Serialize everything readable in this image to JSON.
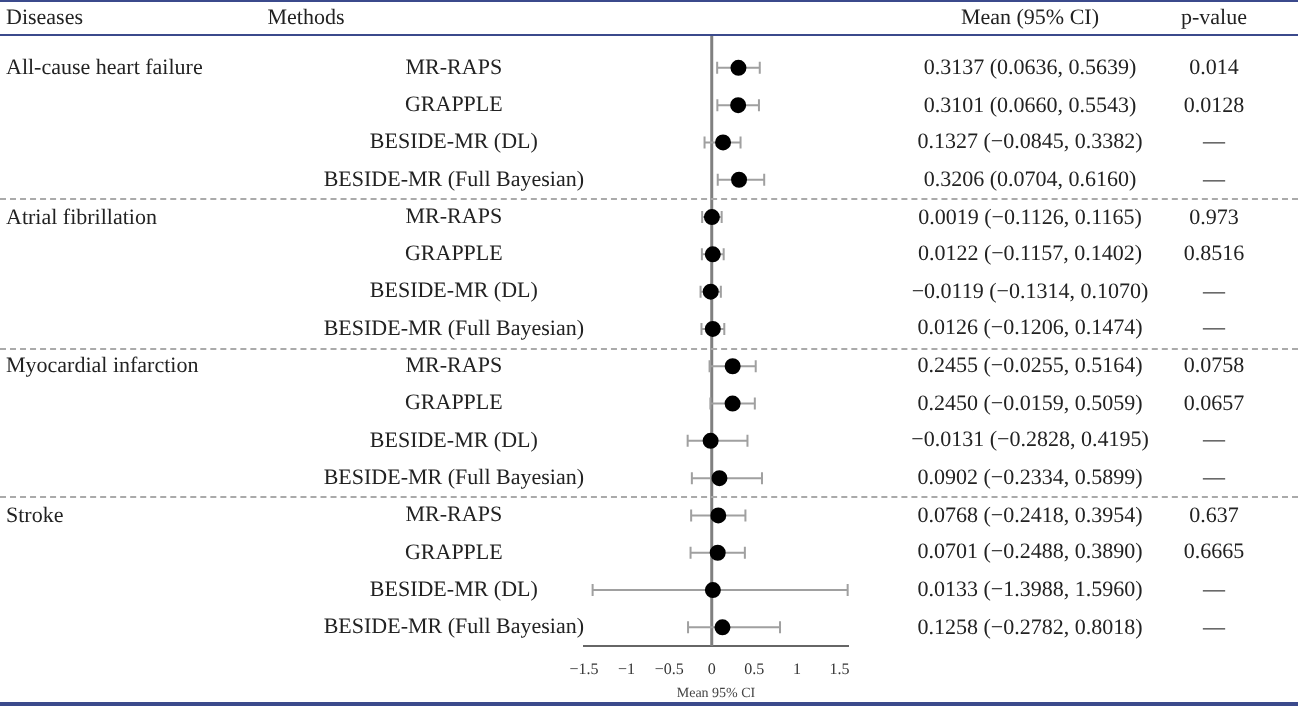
{
  "chart_data": {
    "type": "scatter",
    "orientation": "horizontal",
    "xlabel": "Mean 95% CI",
    "categories": [
      "MR-RAPS",
      "GRAPPLE",
      "BESIDE-MR (DL)",
      "BESIDE-MR (Full Bayesian)",
      "MR-RAPS",
      "GRAPPLE",
      "BESIDE-MR (DL)",
      "BESIDE-MR (Full Bayesian)",
      "MR-RAPS",
      "GRAPPLE",
      "BESIDE-MR (DL)",
      "BESIDE-MR (Full Bayesian)",
      "MR-RAPS",
      "GRAPPLE",
      "BESIDE-MR (DL)",
      "BESIDE-MR (Full Bayesian)"
    ],
    "series": [
      {
        "color": "#000000",
        "values": [
          0.3137,
          0.3101,
          0.1327,
          0.3206,
          0.0019,
          0.0122,
          -0.0119,
          0.0126,
          0.2455,
          0.245,
          -0.0131,
          0.0902,
          0.0768,
          0.0701,
          0.0133,
          0.1258
        ],
        "errors": [
          [
            0.0636,
            0.5639
          ],
          [
            0.066,
            0.5543
          ],
          [
            -0.0845,
            0.3382
          ],
          [
            0.0704,
            0.616
          ],
          [
            -0.1126,
            0.1165
          ],
          [
            -0.1157,
            0.1402
          ],
          [
            -0.1314,
            0.107
          ],
          [
            -0.1206,
            0.1474
          ],
          [
            -0.0255,
            0.5164
          ],
          [
            -0.0159,
            0.5059
          ],
          [
            -0.2828,
            0.4195
          ],
          [
            -0.2334,
            0.5899
          ],
          [
            -0.2418,
            0.3954
          ],
          [
            -0.2488,
            0.389
          ],
          [
            -1.3988,
            1.596
          ],
          [
            -0.2782,
            0.8018
          ]
        ],
        "value_labels": [
          "0.3137 (0.0636, 0.5639)",
          "0.3101 (0.0660, 0.5543)",
          "0.1327 (−0.0845, 0.3382)",
          "0.3206 (0.0704, 0.6160)",
          "0.0019 (−0.1126, 0.1165)",
          "0.0122 (−0.1157, 0.1402)",
          "−0.0119 (−0.1314, 0.1070)",
          "0.0126 (−0.1206, 0.1474)",
          "0.2455 (−0.0255, 0.5164)",
          "0.2450 (−0.0159, 0.5059)",
          "−0.0131 (−0.2828, 0.4195)",
          "0.0902 (−0.2334, 0.5899)",
          "0.0768 (−0.2418, 0.3954)",
          "0.0701 (−0.2488, 0.3890)",
          "0.0133 (−1.3988, 1.5960)",
          "0.1258 (−0.2782, 0.8018)"
        ]
      }
    ],
    "xlim": [
      -1.5,
      1.6
    ],
    "xticks": [
      {
        "value": -1.5,
        "label": "−1.5"
      },
      {
        "value": -1,
        "label": "−1"
      },
      {
        "value": -0.5,
        "label": "−0.5"
      },
      {
        "value": 0,
        "label": "0"
      },
      {
        "value": 0.5,
        "label": "0.5"
      },
      {
        "value": 1,
        "label": "1"
      },
      {
        "value": 1.5,
        "label": "1.5"
      }
    ],
    "ref_lines": [
      {
        "axis": "x",
        "value": 0,
        "color": "#808080"
      }
    ],
    "marker": "circle",
    "grid": false,
    "legend": false,
    "annotations": [
      "Diseases",
      "Methods",
      "Mean (95% CI)",
      "p-value",
      "All-cause heart failure",
      "Atrial fibrillation",
      "Myocardial infarction",
      "Stroke",
      "0.014",
      "0.0128",
      "—",
      "—",
      "0.973",
      "0.8516",
      "—",
      "—",
      "0.0758",
      "0.0657",
      "—",
      "—",
      "0.637",
      "0.6665",
      "—",
      "—"
    ]
  }
}
